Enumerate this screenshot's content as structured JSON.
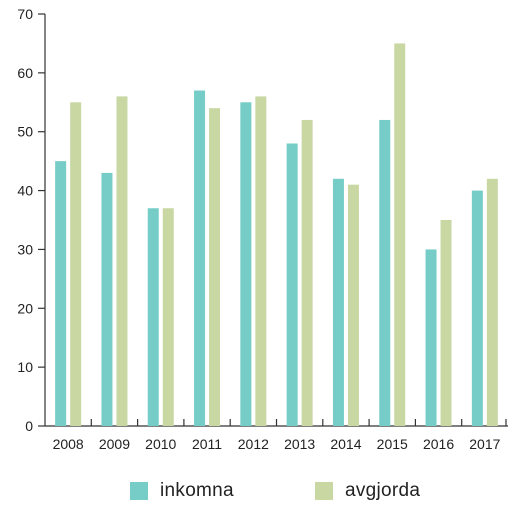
{
  "chart_data": {
    "type": "bar",
    "categories": [
      "2008",
      "2009",
      "2010",
      "2011",
      "2012",
      "2013",
      "2014",
      "2015",
      "2016",
      "2017"
    ],
    "series": [
      {
        "name": "inkomna",
        "color": "#76cdc7",
        "values": [
          45,
          43,
          37,
          57,
          55,
          48,
          42,
          52,
          30,
          40
        ]
      },
      {
        "name": "avgjorda",
        "color": "#c9d7a3",
        "values": [
          55,
          56,
          37,
          54,
          56,
          52,
          41,
          65,
          35,
          42
        ]
      }
    ],
    "ylim": [
      0,
      70
    ],
    "yticks": [
      0,
      10,
      20,
      30,
      40,
      50,
      60,
      70
    ],
    "xlabel": "",
    "ylabel": "",
    "title": "",
    "legend_position": "bottom",
    "grid": false
  }
}
